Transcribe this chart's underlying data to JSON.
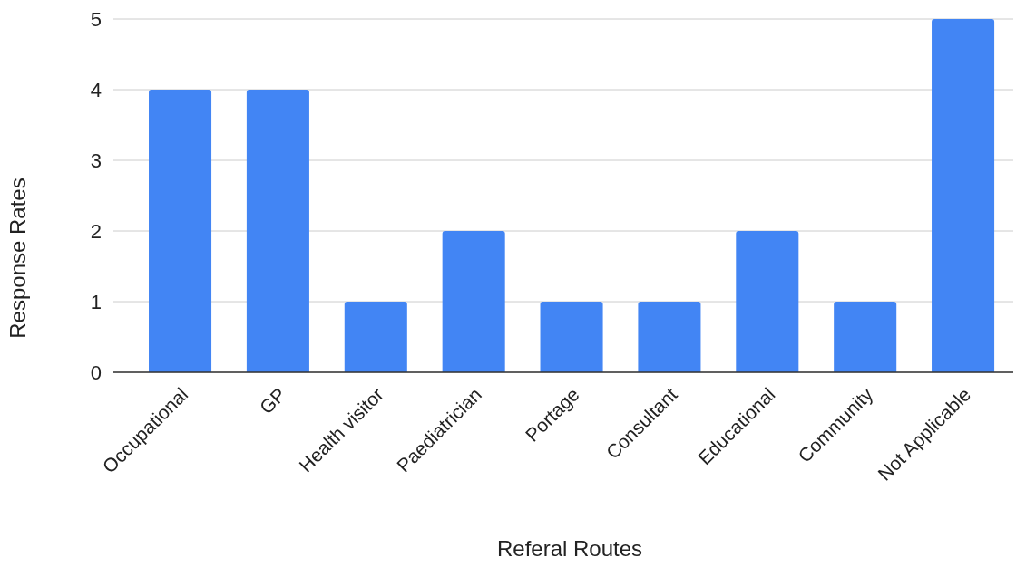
{
  "chart_data": {
    "type": "bar",
    "xlabel": "Referal Routes",
    "ylabel": "Response Rates",
    "categories": [
      "Occupational",
      "GP",
      "Health visitor",
      "Paediatrician",
      "Portage",
      "Consultant",
      "Educational",
      "Community",
      "Not Applicable"
    ],
    "values": [
      4,
      4,
      1,
      2,
      1,
      1,
      2,
      1,
      5
    ],
    "color": "#4285f4",
    "ylim": [
      0,
      5
    ],
    "yticks": [
      0,
      1,
      2,
      3,
      4,
      5
    ],
    "grid": "y"
  }
}
